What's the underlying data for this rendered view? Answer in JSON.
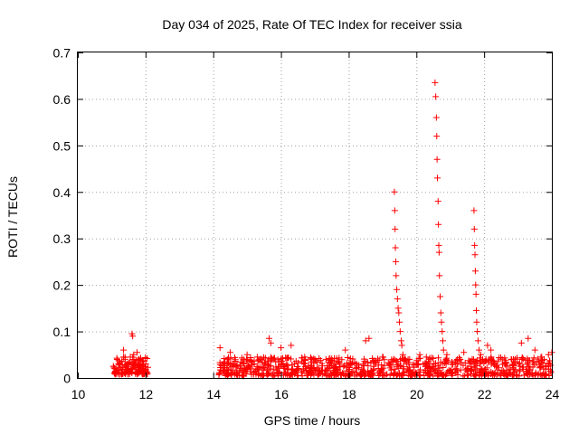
{
  "chart_data": {
    "type": "scatter",
    "title": "Day 034 of 2025, Rate Of TEC Index for receiver ssia",
    "xlabel": "GPS time / hours",
    "ylabel": "ROTI / TECUs",
    "xlim": [
      10,
      24
    ],
    "ylim": [
      0,
      0.7
    ],
    "x_ticks": [
      "10",
      "12",
      "14",
      "16",
      "18",
      "20",
      "22",
      "24"
    ],
    "y_ticks": [
      "0",
      "0.1",
      "0.2",
      "0.3",
      "0.4",
      "0.5",
      "0.6",
      "0.7"
    ],
    "grid": true,
    "marker": "+",
    "color": "#ff0000",
    "series": [
      {
        "name": "ROTI",
        "points": [
          [
            11.05,
            0.025
          ],
          [
            11.1,
            0.02
          ],
          [
            11.15,
            0.018
          ],
          [
            11.2,
            0.03
          ],
          [
            11.25,
            0.022
          ],
          [
            11.3,
            0.035
          ],
          [
            11.35,
            0.06
          ],
          [
            11.4,
            0.04
          ],
          [
            11.45,
            0.028
          ],
          [
            11.5,
            0.032
          ],
          [
            11.55,
            0.045
          ],
          [
            11.6,
            0.095
          ],
          [
            11.62,
            0.09
          ],
          [
            11.65,
            0.05
          ],
          [
            11.7,
            0.03
          ],
          [
            11.75,
            0.055
          ],
          [
            11.8,
            0.04
          ],
          [
            11.85,
            0.025
          ],
          [
            11.9,
            0.035
          ],
          [
            11.95,
            0.02
          ],
          [
            12.0,
            0.015
          ],
          [
            12.05,
            0.012
          ],
          [
            11.12,
            0.015
          ],
          [
            11.32,
            0.018
          ],
          [
            11.52,
            0.015
          ],
          [
            11.72,
            0.018
          ],
          [
            11.92,
            0.015
          ],
          [
            11.42,
            0.012
          ],
          [
            11.82,
            0.012
          ],
          [
            19.35,
            0.4
          ],
          [
            19.36,
            0.36
          ],
          [
            19.37,
            0.32
          ],
          [
            19.38,
            0.28
          ],
          [
            19.39,
            0.25
          ],
          [
            19.4,
            0.22
          ],
          [
            19.42,
            0.19
          ],
          [
            19.44,
            0.17
          ],
          [
            19.46,
            0.15
          ],
          [
            19.48,
            0.14
          ],
          [
            19.5,
            0.12
          ],
          [
            19.52,
            0.1
          ],
          [
            19.55,
            0.08
          ],
          [
            19.57,
            0.07
          ],
          [
            19.6,
            0.05
          ],
          [
            20.55,
            0.635
          ],
          [
            20.57,
            0.605
          ],
          [
            20.59,
            0.56
          ],
          [
            20.6,
            0.52
          ],
          [
            20.61,
            0.47
          ],
          [
            20.62,
            0.43
          ],
          [
            20.64,
            0.38
          ],
          [
            20.65,
            0.33
          ],
          [
            20.66,
            0.285
          ],
          [
            20.67,
            0.27
          ],
          [
            20.68,
            0.22
          ],
          [
            20.7,
            0.175
          ],
          [
            20.72,
            0.14
          ],
          [
            20.74,
            0.12
          ],
          [
            20.76,
            0.1
          ],
          [
            20.78,
            0.08
          ],
          [
            20.8,
            0.06
          ],
          [
            21.7,
            0.36
          ],
          [
            21.71,
            0.32
          ],
          [
            21.72,
            0.285
          ],
          [
            21.73,
            0.265
          ],
          [
            21.74,
            0.23
          ],
          [
            21.75,
            0.2
          ],
          [
            21.76,
            0.18
          ],
          [
            21.77,
            0.145
          ],
          [
            21.78,
            0.12
          ],
          [
            21.8,
            0.1
          ],
          [
            21.82,
            0.08
          ],
          [
            21.85,
            0.06
          ],
          [
            14.2,
            0.065
          ],
          [
            14.5,
            0.055
          ],
          [
            15.0,
            0.05
          ],
          [
            15.3,
            0.045
          ],
          [
            15.65,
            0.085
          ],
          [
            15.7,
            0.075
          ],
          [
            16.0,
            0.065
          ],
          [
            16.3,
            0.07
          ],
          [
            16.7,
            0.045
          ],
          [
            17.0,
            0.04
          ],
          [
            17.5,
            0.035
          ],
          [
            17.9,
            0.06
          ],
          [
            18.5,
            0.08
          ],
          [
            18.6,
            0.085
          ],
          [
            19.0,
            0.045
          ],
          [
            19.8,
            0.04
          ],
          [
            20.1,
            0.05
          ],
          [
            20.9,
            0.05
          ],
          [
            21.4,
            0.055
          ],
          [
            21.9,
            0.05
          ],
          [
            22.1,
            0.07
          ],
          [
            22.2,
            0.06
          ],
          [
            22.8,
            0.04
          ],
          [
            23.1,
            0.075
          ],
          [
            23.3,
            0.085
          ],
          [
            23.5,
            0.06
          ],
          [
            23.7,
            0.045
          ],
          [
            23.9,
            0.05
          ],
          [
            24.0,
            0.055
          ]
        ]
      }
    ],
    "dense_clusters": [
      {
        "x_range": [
          11.05,
          12.1
        ],
        "y_range": [
          0.008,
          0.045
        ],
        "density": 130
      },
      {
        "x_range": [
          14.15,
          24.0
        ],
        "y_range": [
          0.004,
          0.045
        ],
        "density": 900
      }
    ]
  }
}
